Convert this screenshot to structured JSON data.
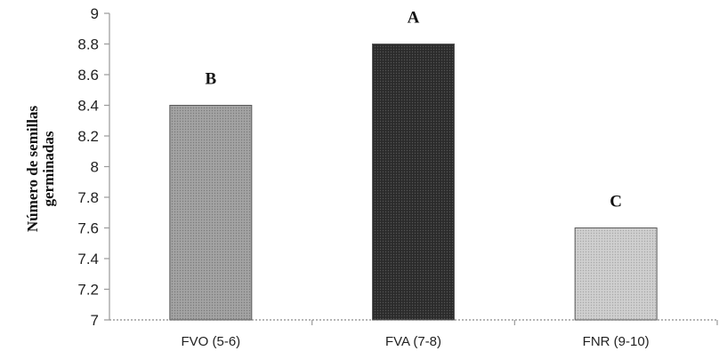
{
  "chart_data": {
    "type": "bar",
    "categories": [
      "FVO (5-6)",
      "FVA (7-8)",
      "FNR (9-10)"
    ],
    "values": [
      8.4,
      8.8,
      7.6
    ],
    "letters": [
      "B",
      "A",
      "C"
    ],
    "ylabel_lines": [
      "Número de semillas",
      "germinadas"
    ],
    "xlabel": "",
    "ylim": [
      7,
      9
    ],
    "yticks": [
      "7",
      "7.2",
      "7.4",
      "7.6",
      "7.8",
      "8",
      "8.2",
      "8.4",
      "8.6",
      "8.8",
      "9"
    ],
    "grid": false,
    "legend": "none",
    "colors": [
      "#9e9e9e",
      "#2a2a2a",
      "#cbcbcb"
    ],
    "patterns": [
      "dots-light",
      "dots-dark",
      "dots-light"
    ]
  }
}
